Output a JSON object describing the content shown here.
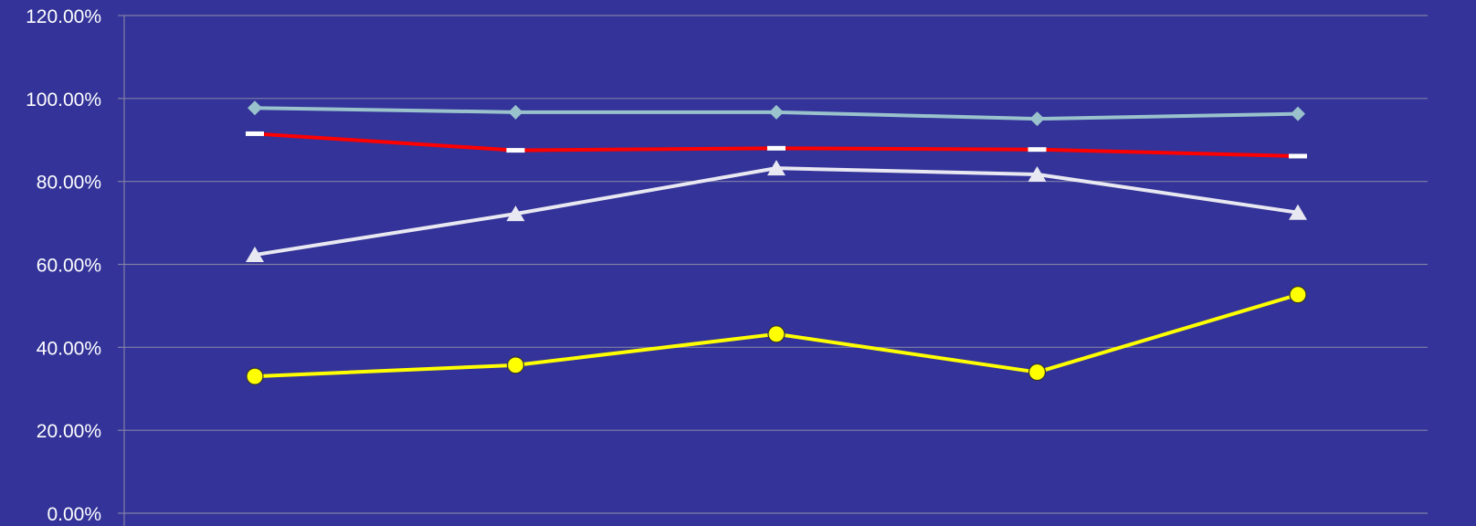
{
  "chart_data": {
    "type": "line",
    "title": "",
    "xlabel": "",
    "ylabel": "",
    "categories": [
      "",
      "",
      "",
      "",
      ""
    ],
    "ylim": [
      0,
      1.2
    ],
    "y_ticks": [
      0,
      0.2,
      0.4,
      0.6,
      0.8,
      1.0,
      1.2
    ],
    "y_tick_labels": [
      "0.00%",
      "20.00%",
      "40.00%",
      "60.00%",
      "80.00%",
      "100.00%",
      "120.00%"
    ],
    "grid": true,
    "legend": "none",
    "background_color": "#333399",
    "series": [
      {
        "values": [
          0.977,
          0.967,
          0.967,
          0.951,
          0.963
        ],
        "color": "#99C2CC",
        "marker": "diamond"
      },
      {
        "values": [
          0.915,
          0.875,
          0.88,
          0.877,
          0.861
        ],
        "color": "#FF0000",
        "marker": "dash"
      },
      {
        "values": [
          0.623,
          0.722,
          0.832,
          0.817,
          0.725
        ],
        "color": "#E8E8F2",
        "marker": "triangle"
      },
      {
        "values": [
          0.33,
          0.357,
          0.432,
          0.34,
          0.527
        ],
        "color": "#FFFF00",
        "marker": "circle"
      }
    ]
  }
}
